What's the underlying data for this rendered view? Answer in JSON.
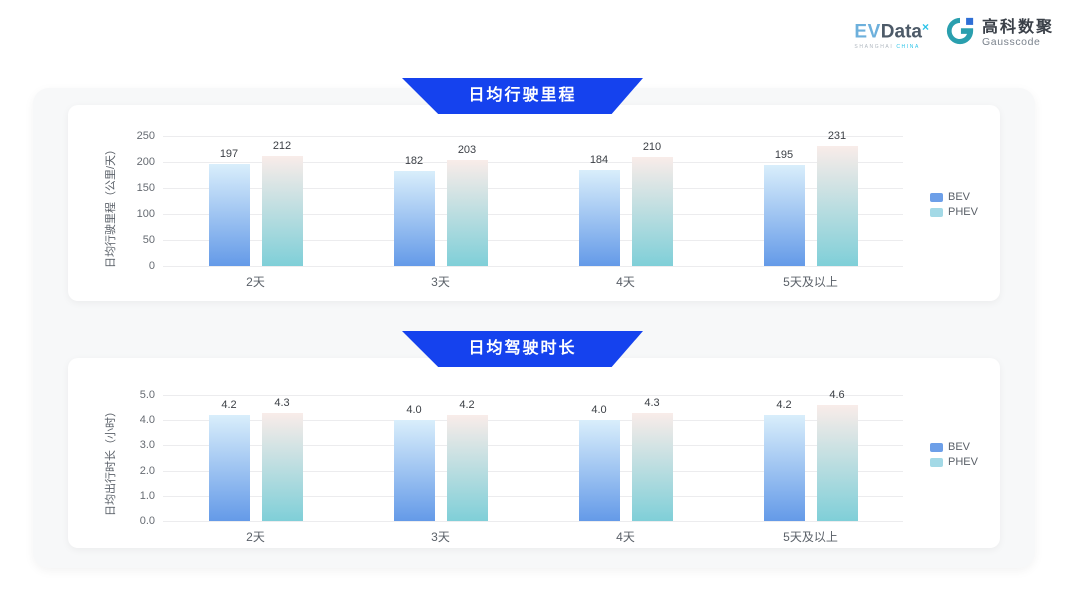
{
  "header": {
    "evdata_logo": {
      "ev": "EV",
      "data": "Data",
      "sup": "×",
      "sub_left": "SHANGHAI",
      "sub_right": "CHINA"
    },
    "gausscode_logo": {
      "cn": "高科数聚",
      "en": "Gausscode"
    }
  },
  "legend": {
    "bev": "BEV",
    "phev": "PHEV"
  },
  "chart_data": [
    {
      "type": "bar",
      "title": "日均行驶里程",
      "ylabel": "日均行驶里程（公里/天）",
      "categories": [
        "2天",
        "3天",
        "4天",
        "5天及以上"
      ],
      "series": [
        {
          "name": "BEV",
          "values": [
            197,
            182,
            184,
            195
          ]
        },
        {
          "name": "PHEV",
          "values": [
            212,
            203,
            210,
            231
          ]
        }
      ],
      "ylim": [
        0,
        250
      ],
      "yticks": [
        0,
        50,
        100,
        150,
        200,
        250
      ],
      "tick_decimals": 0,
      "value_decimals": 0,
      "grid": true,
      "legend_position": "right"
    },
    {
      "type": "bar",
      "title": "日均驾驶时长",
      "ylabel": "日均出行时长（小时）",
      "categories": [
        "2天",
        "3天",
        "4天",
        "5天及以上"
      ],
      "series": [
        {
          "name": "BEV",
          "values": [
            4.2,
            4.0,
            4.0,
            4.2
          ]
        },
        {
          "name": "PHEV",
          "values": [
            4.3,
            4.2,
            4.3,
            4.6
          ]
        }
      ],
      "ylim": [
        0,
        5.0
      ],
      "yticks": [
        0.0,
        1.0,
        2.0,
        3.0,
        4.0,
        5.0
      ],
      "tick_decimals": 1,
      "value_decimals": 1,
      "grid": true,
      "legend_position": "right"
    }
  ],
  "colors": {
    "banner_bg": "#1542ee",
    "banner_text": "#ffffff",
    "panel_bg": "#f7f8f9",
    "card_bg": "#ffffff",
    "grid_line": "#ececee",
    "series_styles": [
      {
        "name": "BEV",
        "gradient_top": "#d9eefb",
        "gradient_bottom": "#649ae8",
        "legend": "#6d9fe8"
      },
      {
        "name": "PHEV",
        "gradient_top": "#f9ece9",
        "gradient_bottom": "#7fcfd8",
        "legend": "#a3d9e6"
      }
    ],
    "evdata_cyan": "#2cc3e8",
    "gausscode_teal": "#2a9fae",
    "gausscode_blue": "#2f6fd6"
  }
}
